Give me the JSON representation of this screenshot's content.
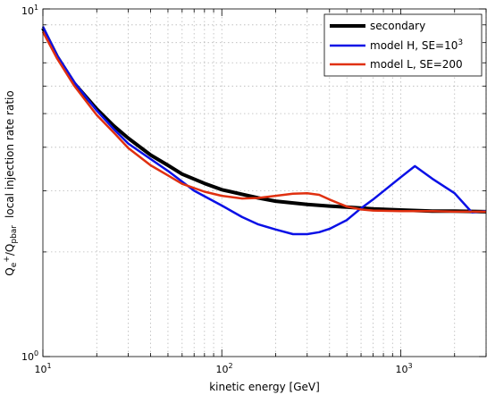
{
  "chart_data": {
    "type": "line",
    "xlabel": "kinetic energy [GeV]",
    "ylabel": {
      "main": "local injection rate ratio",
      "q1": "Q",
      "q1_sub": "e",
      "q1_sup": "+",
      "slash": "/Q",
      "q2_sub": "pbar"
    },
    "xscale": "log",
    "yscale": "log",
    "xlim": [
      10,
      3000
    ],
    "ylim": [
      1,
      10
    ],
    "grid": true,
    "legend_position": "top-right",
    "x_ticks": [
      {
        "base": "10",
        "exp": "1"
      },
      {
        "base": "10",
        "exp": "2"
      },
      {
        "base": "10",
        "exp": "3"
      }
    ],
    "y_ticks": [
      {
        "base": "10",
        "exp": "0"
      },
      {
        "base": "10",
        "exp": "1"
      }
    ],
    "series": [
      {
        "name": "secondary",
        "color": "#000000",
        "x": [
          10,
          12,
          15,
          20,
          25,
          30,
          40,
          50,
          60,
          80,
          100,
          130,
          160,
          200,
          300,
          400,
          500,
          700,
          1000,
          1500,
          2000,
          3000
        ],
        "y": [
          8.8,
          7.3,
          6.1,
          5.15,
          4.6,
          4.25,
          3.8,
          3.55,
          3.35,
          3.15,
          3.02,
          2.93,
          2.86,
          2.8,
          2.74,
          2.71,
          2.69,
          2.66,
          2.64,
          2.62,
          2.62,
          2.61
        ]
      },
      {
        "name": "model H, SE=10^3",
        "color": "#0a10e6",
        "x": [
          10,
          12,
          15,
          20,
          25,
          30,
          40,
          50,
          70,
          100,
          130,
          160,
          200,
          250,
          300,
          350,
          400,
          500,
          600,
          700,
          1000,
          1200,
          1500,
          2000,
          2500,
          3000
        ],
        "y": [
          8.9,
          7.35,
          6.15,
          5.1,
          4.5,
          4.1,
          3.7,
          3.42,
          3.0,
          2.72,
          2.52,
          2.4,
          2.32,
          2.25,
          2.25,
          2.28,
          2.33,
          2.47,
          2.67,
          2.83,
          3.28,
          3.53,
          3.25,
          2.95,
          2.6,
          2.62
        ]
      },
      {
        "name": "model L, SE=200",
        "color": "#e03010",
        "x": [
          10,
          12,
          15,
          20,
          25,
          30,
          40,
          50,
          60,
          80,
          100,
          130,
          160,
          200,
          250,
          300,
          350,
          400,
          500,
          600,
          700,
          1000,
          1500,
          2000,
          3000
        ],
        "y": [
          8.6,
          7.2,
          6.0,
          4.95,
          4.4,
          3.98,
          3.55,
          3.32,
          3.14,
          2.98,
          2.9,
          2.85,
          2.86,
          2.9,
          2.94,
          2.95,
          2.92,
          2.83,
          2.7,
          2.65,
          2.63,
          2.62,
          2.62,
          2.61,
          2.61
        ]
      }
    ],
    "legend": {
      "entries": [
        {
          "label": "secondary",
          "color": "#000000"
        },
        {
          "label": "model H, SE=10",
          "sup": "3",
          "color": "#0a10e6"
        },
        {
          "label": "model L, SE=200",
          "color": "#e03010"
        }
      ]
    }
  }
}
